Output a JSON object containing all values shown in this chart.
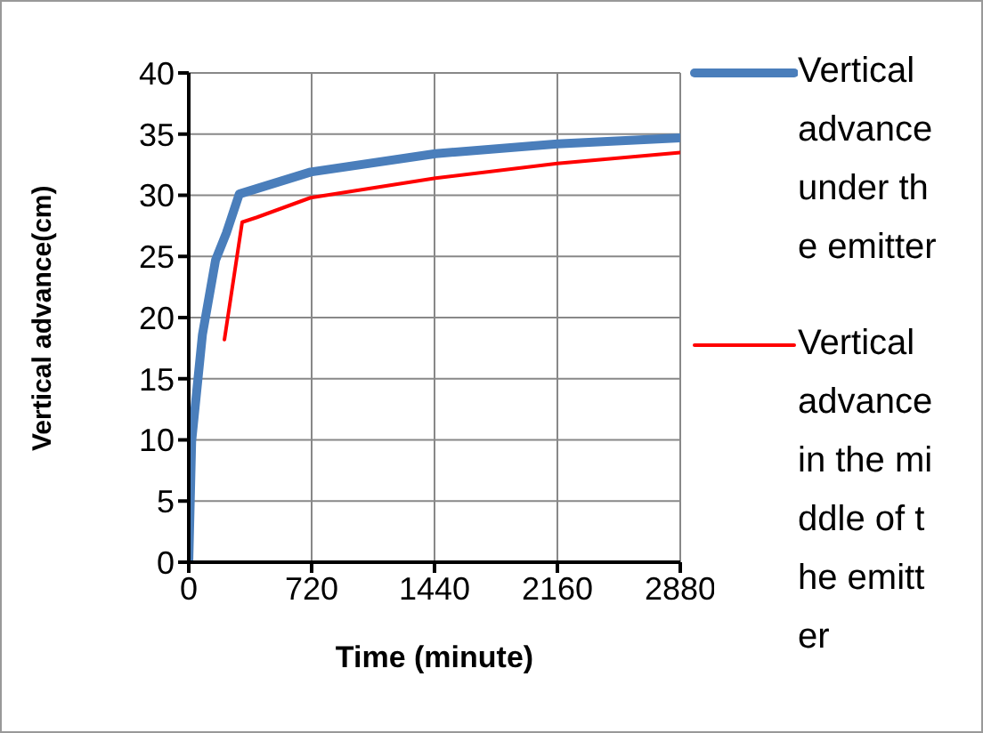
{
  "chart_data": {
    "type": "line",
    "xlabel": "Time (minute)",
    "ylabel": "Vertical advance(cm)",
    "xlim": [
      0,
      2880
    ],
    "xticks": [
      0,
      720,
      1440,
      2160,
      2880
    ],
    "ylim": [
      0,
      40
    ],
    "yticks": [
      0,
      5,
      10,
      15,
      20,
      25,
      30,
      35,
      40
    ],
    "grid": true,
    "legend": "right",
    "marker": "none",
    "line_style": "solid",
    "series": [
      {
        "name": "Vertical advance under the emitter",
        "color": "#4a7ebb",
        "x": [
          0,
          17,
          80,
          157,
          220,
          296,
          714,
          1446,
          2160,
          2880
        ],
        "values": [
          0,
          9.9,
          18.6,
          24.7,
          26.9,
          30.1,
          31.9,
          33.4,
          34.2,
          34.7
        ]
      },
      {
        "name": "Vertical advance in the middle of the emitter",
        "color": "#ff0000",
        "x": [
          209,
          313,
          400,
          714,
          1446,
          2160,
          2880
        ],
        "values": [
          18.2,
          27.8,
          28.2,
          29.8,
          31.4,
          32.6,
          33.5
        ]
      }
    ]
  }
}
